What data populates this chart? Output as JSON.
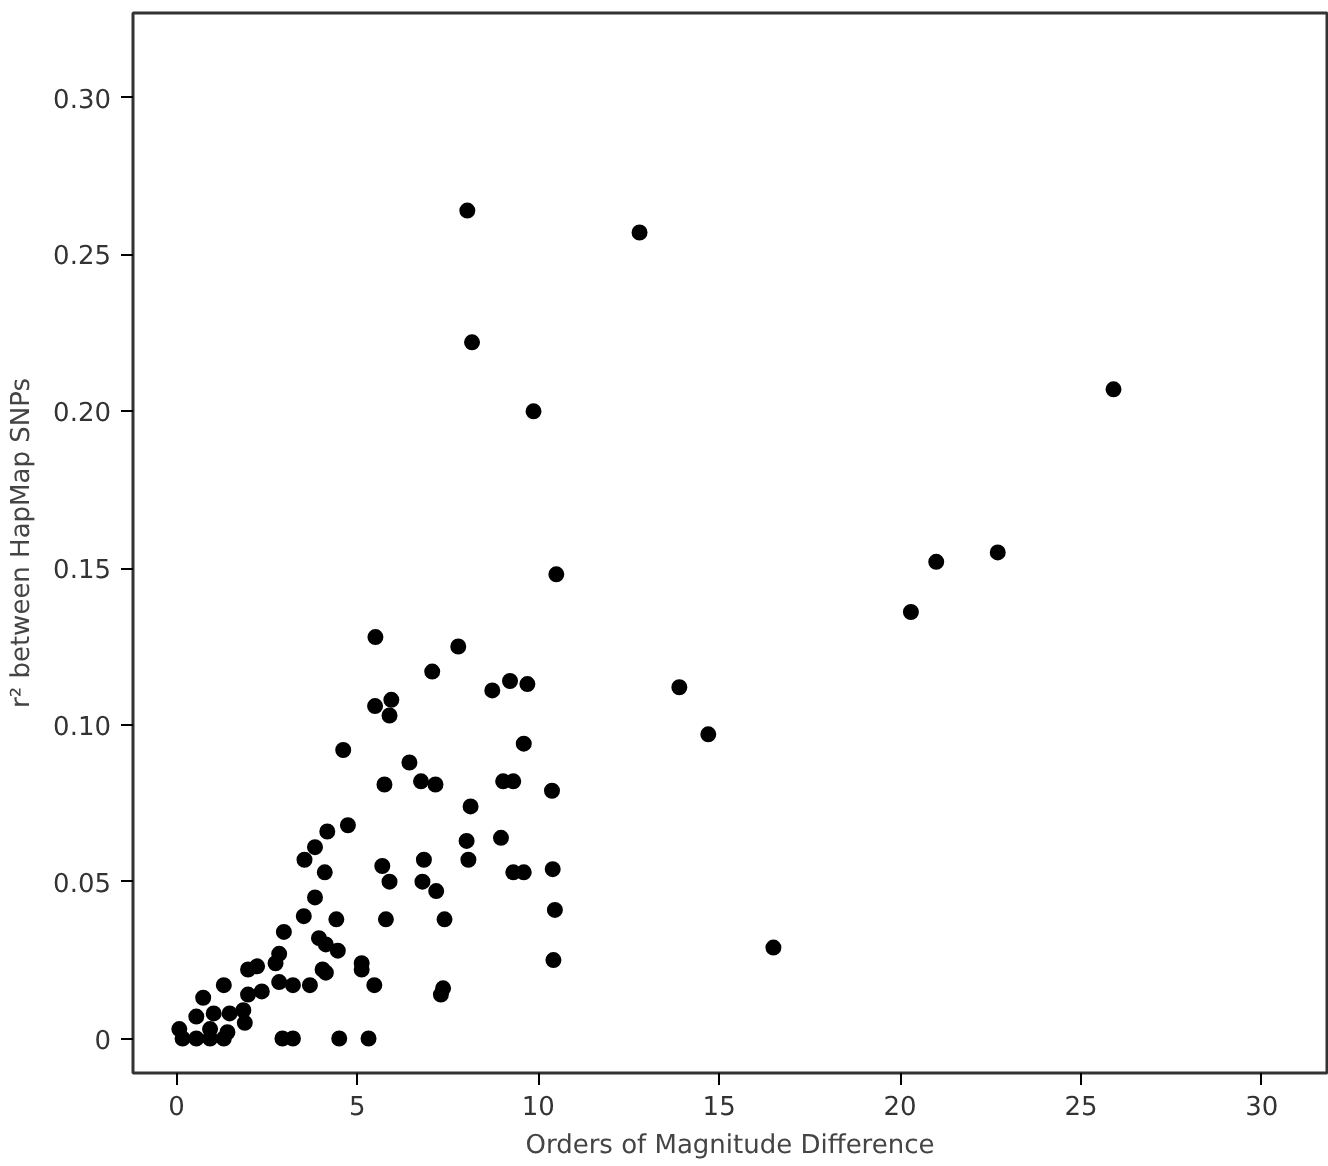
{
  "chart_data": {
    "type": "scatter",
    "xlabel": "Orders of Magnitude Difference",
    "ylabel": "r² between HapMap SNPs",
    "xlim": [
      -1.2,
      31.8
    ],
    "ylim": [
      -0.011,
      0.327
    ],
    "xticks": [
      0,
      5,
      10,
      15,
      20,
      25,
      30
    ],
    "yticks": [
      {
        "value": 0,
        "label": "0"
      },
      {
        "value": 0.05,
        "label": "0.05"
      },
      {
        "value": 0.1,
        "label": "0.10"
      },
      {
        "value": 0.15,
        "label": "0.15"
      },
      {
        "value": 0.2,
        "label": "0.20"
      },
      {
        "value": 0.25,
        "label": "0.25"
      },
      {
        "value": 0.3,
        "label": "0.30"
      }
    ],
    "marker": "circle",
    "series": [
      {
        "color": "#000000",
        "x": [
          8.04,
          12.8,
          8.17,
          9.87,
          10.5,
          20.3,
          13.9,
          14.7,
          16.5,
          21.0,
          22.7,
          25.9,
          5.5,
          7.79,
          7.07,
          8.73,
          9.22,
          9.7,
          5.49,
          5.94,
          5.89,
          4.61,
          9.6,
          6.44,
          5.75,
          6.76,
          7.16,
          8.13,
          9.03,
          9.31,
          10.38,
          4.17,
          4.74,
          3.83,
          8.02,
          8.97,
          3.54,
          4.1,
          5.69,
          5.89,
          6.84,
          6.8,
          7.18,
          8.07,
          9.31,
          9.6,
          3.83,
          5.79,
          7.41,
          4.42,
          3.52,
          2.97,
          3.94,
          4.13,
          4.46,
          5.12,
          5.12,
          4.04,
          4.13,
          2.84,
          2.74,
          2.23,
          1.98,
          2.84,
          3.22,
          3.69,
          2.36,
          1.98,
          5.47,
          7.37,
          7.31,
          10.42,
          1.31,
          0.74,
          1.85,
          1.47,
          1.03,
          0.55,
          1.89,
          0.08,
          0.93,
          1.41,
          0.17,
          0.55,
          0.93,
          1.31,
          2.93,
          3.22,
          4.5,
          5.31,
          10.4,
          10.46
        ],
        "values": [
          0.264,
          0.257,
          0.222,
          0.2,
          0.148,
          0.136,
          0.112,
          0.097,
          0.029,
          0.152,
          0.155,
          0.207,
          0.128,
          0.125,
          0.117,
          0.111,
          0.114,
          0.113,
          0.106,
          0.108,
          0.103,
          0.092,
          0.094,
          0.088,
          0.081,
          0.082,
          0.081,
          0.074,
          0.082,
          0.082,
          0.079,
          0.066,
          0.068,
          0.061,
          0.063,
          0.064,
          0.057,
          0.053,
          0.055,
          0.05,
          0.057,
          0.05,
          0.047,
          0.057,
          0.053,
          0.053,
          0.045,
          0.038,
          0.038,
          0.038,
          0.039,
          0.034,
          0.032,
          0.03,
          0.028,
          0.024,
          0.022,
          0.022,
          0.021,
          0.027,
          0.024,
          0.023,
          0.022,
          0.018,
          0.017,
          0.017,
          0.015,
          0.014,
          0.017,
          0.016,
          0.014,
          0.025,
          0.017,
          0.013,
          0.009,
          0.008,
          0.008,
          0.007,
          0.005,
          0.003,
          0.003,
          0.002,
          0.0,
          0.0,
          0.0,
          0.0,
          0.0,
          0.0,
          0.0,
          0.0,
          0.054,
          0.041
        ]
      }
    ]
  }
}
